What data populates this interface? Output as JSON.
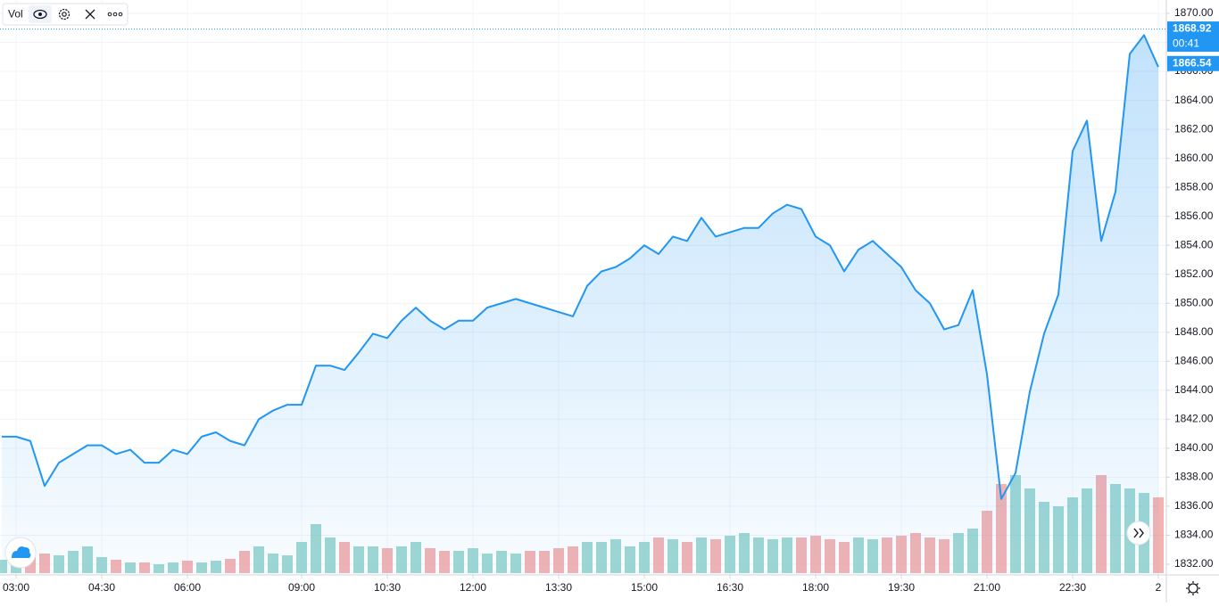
{
  "chart_data": {
    "type": "area-line",
    "x": [
      "02:45",
      "03:00",
      "03:15",
      "03:30",
      "03:45",
      "04:00",
      "04:15",
      "04:30",
      "04:45",
      "05:00",
      "05:15",
      "05:30",
      "05:45",
      "06:00",
      "06:15",
      "06:30",
      "06:45",
      "08:00",
      "08:15",
      "08:30",
      "08:45",
      "09:00",
      "09:15",
      "09:30",
      "09:45",
      "10:00",
      "10:15",
      "10:30",
      "10:45",
      "11:00",
      "11:15",
      "11:30",
      "11:45",
      "12:00",
      "12:15",
      "12:30",
      "12:45",
      "13:00",
      "13:15",
      "13:30",
      "13:45",
      "14:00",
      "14:15",
      "14:30",
      "14:45",
      "15:00",
      "15:15",
      "15:30",
      "15:45",
      "16:00",
      "16:15",
      "16:30",
      "16:45",
      "17:00",
      "17:15",
      "17:30",
      "17:45",
      "18:00",
      "18:15",
      "18:30",
      "18:45",
      "19:00",
      "19:15",
      "19:30",
      "19:45",
      "20:00",
      "20:15",
      "20:30",
      "20:45",
      "21:00",
      "21:15",
      "21:30",
      "21:45",
      "22:00",
      "22:15",
      "22:30",
      "22:45",
      "23:00",
      "23:15",
      "23:30",
      "23:45",
      "00:00"
    ],
    "series": [
      {
        "color": "#2196f3",
        "values": [
          1840.8,
          1840.8,
          1840.5,
          1837.4,
          1839,
          1839.6,
          1840.2,
          1840.2,
          1839.6,
          1839.9,
          1839,
          1839,
          1839.9,
          1839.6,
          1840.8,
          1841.1,
          1840.5,
          1840.2,
          1842,
          1842.6,
          1843,
          1843,
          1845.7,
          1845.7,
          1845.4,
          1846.6,
          1847.9,
          1847.6,
          1848.8,
          1849.7,
          1848.8,
          1848.2,
          1848.8,
          1848.8,
          1849.7,
          1850,
          1850.3,
          1850,
          1849.7,
          1849.4,
          1849.1,
          1851.2,
          1852.2,
          1852.5,
          1853.1,
          1854,
          1853.4,
          1854.6,
          1854.3,
          1855.9,
          1854.6,
          1854.9,
          1855.2,
          1855.2,
          1856.2,
          1856.8,
          1856.5,
          1854.6,
          1854,
          1852.2,
          1853.7,
          1854.3,
          1853.4,
          1852.5,
          1850.9,
          1850,
          1848.2,
          1848.5,
          1850.9,
          1845.1,
          1836.5,
          1838.3,
          1843.9,
          1847.9,
          1850.6,
          1860.5,
          1862.6,
          1854.3,
          1857.7,
          1867.2,
          1868.5,
          1866.3
        ]
      }
    ],
    "volume": {
      "name": "Vol",
      "ylim": [
        0,
        200
      ],
      "up_color": "#80cbc4",
      "down_color": "#ef9a9a",
      "values": [
        15,
        20,
        18,
        22,
        20,
        25,
        30,
        18,
        15,
        12,
        12,
        10,
        12,
        14,
        12,
        14,
        16,
        25,
        30,
        22,
        20,
        35,
        55,
        40,
        35,
        30,
        30,
        28,
        30,
        35,
        28,
        25,
        25,
        28,
        22,
        25,
        22,
        25,
        25,
        28,
        30,
        35,
        35,
        38,
        30,
        35,
        40,
        38,
        35,
        40,
        38,
        42,
        45,
        40,
        38,
        40,
        40,
        42,
        38,
        35,
        40,
        38,
        40,
        42,
        45,
        40,
        38,
        45,
        50,
        70,
        100,
        110,
        95,
        80,
        75,
        85,
        95,
        110,
        100,
        95,
        90,
        85
      ]
    },
    "ylim": [
      1832,
      1870
    ],
    "yticks": [
      {
        "value": 1832,
        "label": "1832.00"
      },
      {
        "value": 1834,
        "label": "1834.00"
      },
      {
        "value": 1836,
        "label": "1836.00"
      },
      {
        "value": 1838,
        "label": "1838.00"
      },
      {
        "value": 1840,
        "label": "1840.00"
      },
      {
        "value": 1842,
        "label": "1842.00"
      },
      {
        "value": 1844,
        "label": "1844.00"
      },
      {
        "value": 1846,
        "label": "1846.00"
      },
      {
        "value": 1848,
        "label": "1848.00"
      },
      {
        "value": 1850,
        "label": "1850.00"
      },
      {
        "value": 1852,
        "label": "1852.00"
      },
      {
        "value": 1854,
        "label": "1854.00"
      },
      {
        "value": 1856,
        "label": "1856.00"
      },
      {
        "value": 1858,
        "label": "1858.00"
      },
      {
        "value": 1860,
        "label": "1860.00"
      },
      {
        "value": 1862,
        "label": "1862.00"
      },
      {
        "value": 1864,
        "label": "1864.00"
      },
      {
        "value": 1866,
        "label": "1866.00"
      },
      {
        "value": 1868,
        "label": "1868.00"
      },
      {
        "value": 1870,
        "label": "1870.00"
      }
    ],
    "xticks": [
      "03:00",
      "04:30",
      "06:00",
      "09:00",
      "10:30",
      "12:00",
      "13:30",
      "15:00",
      "16:30",
      "18:00",
      "19:30",
      "21:00",
      "22:30",
      {
        "value": "00:00",
        "label": "2"
      }
    ],
    "price_lines": [
      1868.92,
      1866.54
    ],
    "countdown": "00:41",
    "grid": true
  }
}
